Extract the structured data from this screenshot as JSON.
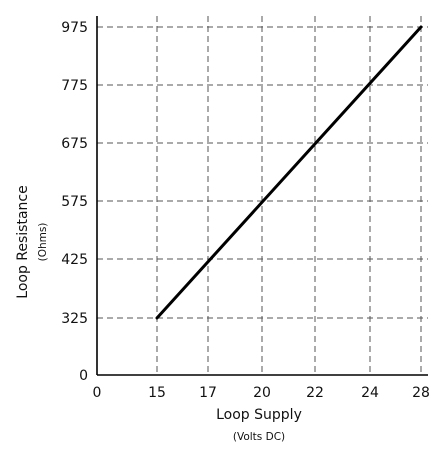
{
  "chart_data": {
    "type": "line",
    "xlabel": "Loop Supply",
    "xlabel_unit": "(Volts DC)",
    "ylabel": "Loop Resistance",
    "ylabel_unit": "(Ohms)",
    "x_ticks": [
      "0",
      "15",
      "17",
      "20",
      "22",
      "24",
      "28"
    ],
    "y_ticks": [
      "0",
      "325",
      "425",
      "575",
      "675",
      "775",
      "975"
    ],
    "grid": true,
    "series": [
      {
        "x": [
          15,
          28
        ],
        "y": [
          325,
          975
        ]
      }
    ]
  }
}
